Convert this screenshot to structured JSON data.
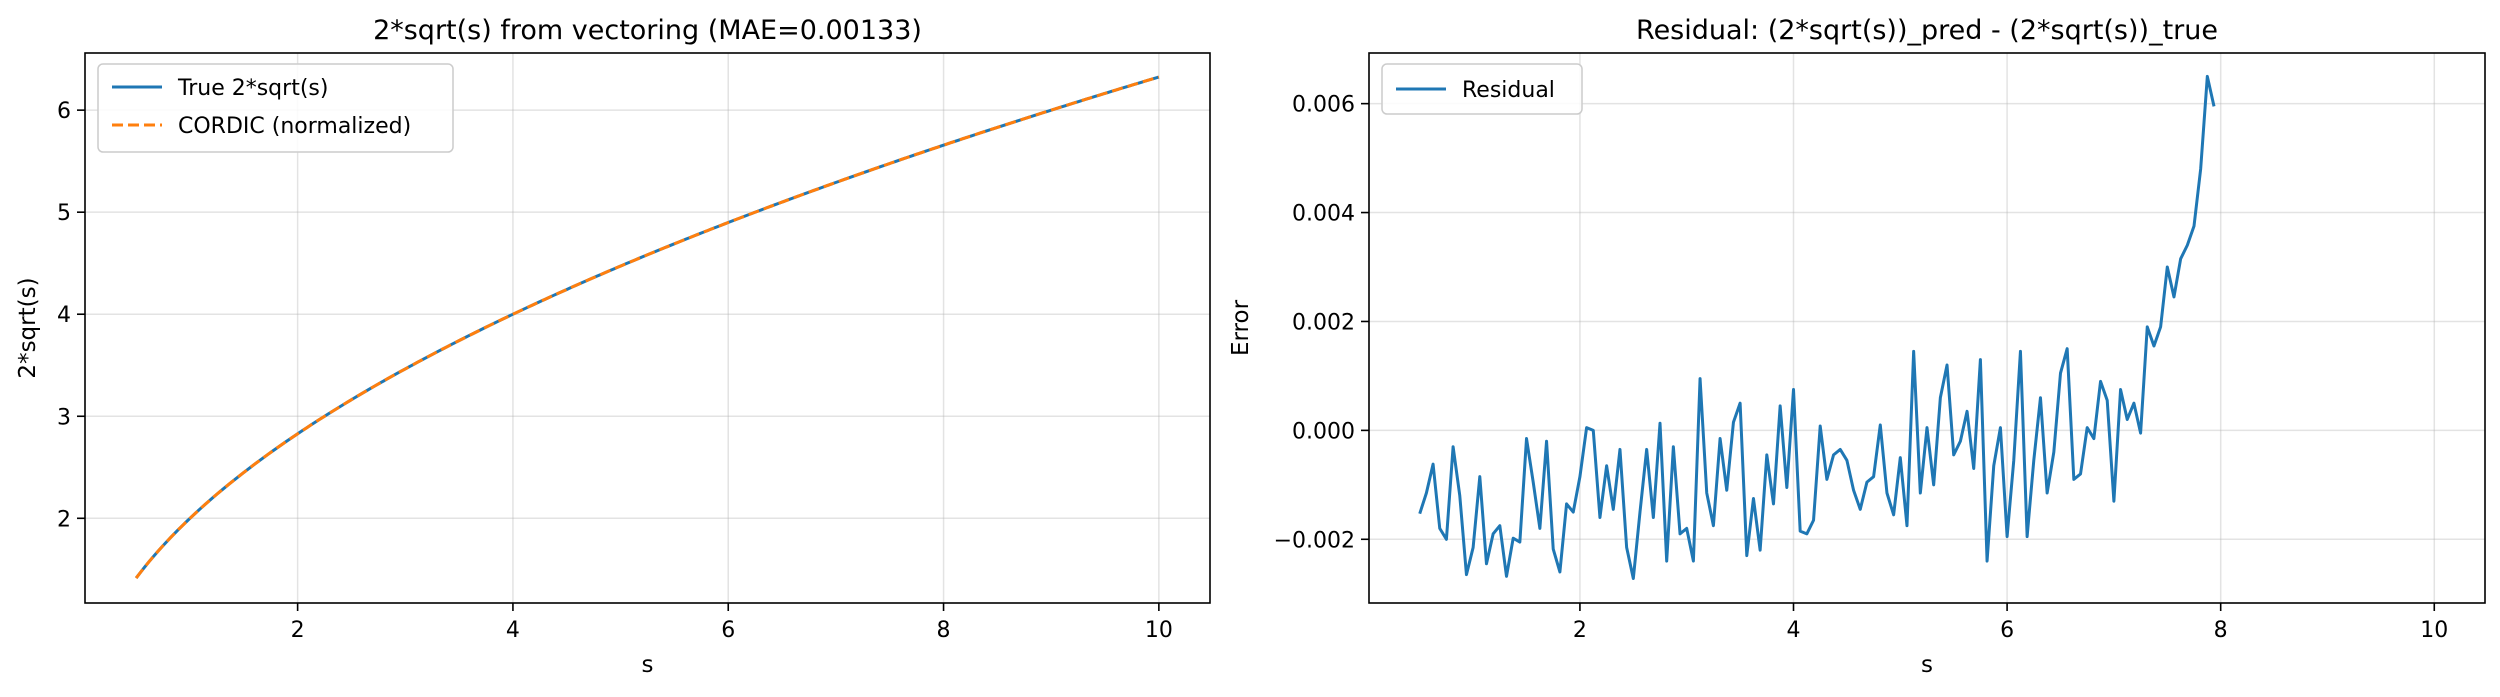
{
  "colors": {
    "blue": "#1f77b4",
    "orange": "#ff7f0e"
  },
  "chart_data": [
    {
      "type": "line",
      "title": "2*sqrt(s) from vectoring  (MAE=0.00133)",
      "xlabel": "s",
      "ylabel": "2*sqrt(s)",
      "xlim": [
        0.025,
        10.475
      ],
      "ylim": [
        1.17,
        6.56
      ],
      "xticks": [
        2,
        4,
        6,
        8,
        10
      ],
      "xtick_labels": [
        "2",
        "4",
        "6",
        "8",
        "10"
      ],
      "yticks": [
        2,
        3,
        4,
        5,
        6
      ],
      "ytick_labels": [
        "2",
        "3",
        "4",
        "5",
        "6"
      ],
      "grid": true,
      "legend_position": "upper-left",
      "x_range": [
        0.5,
        10
      ],
      "series": [
        {
          "name": "True 2*sqrt(s)",
          "function": "2*sqrt(s)",
          "color": "#1f77b4",
          "style": "solid"
        },
        {
          "name": "CORDIC (normalized)",
          "function": "2*sqrt(s)",
          "color": "#ff7f0e",
          "style": "dashed"
        }
      ]
    },
    {
      "type": "line",
      "title": "Residual: (2*sqrt(s))_pred - (2*sqrt(s))_true",
      "xlabel": "s",
      "ylabel": "Error",
      "xlim": [
        0.025,
        10.475
      ],
      "ylim": [
        -0.00317,
        0.00693
      ],
      "xticks": [
        2,
        4,
        6,
        8,
        10
      ],
      "xtick_labels": [
        "2",
        "4",
        "6",
        "8",
        "10"
      ],
      "yticks": [
        -0.002,
        0.0,
        0.002,
        0.004,
        0.006
      ],
      "ytick_labels": [
        "−0.002",
        "0.000",
        "0.002",
        "0.004",
        "0.006"
      ],
      "grid": true,
      "legend_position": "upper-left",
      "series": [
        {
          "name": "Residual",
          "color": "#1f77b4",
          "x_start": 0.5,
          "x_step": 0.0625,
          "values": [
            -0.00153,
            -0.00115,
            -0.00062,
            -0.0018,
            -0.002,
            -0.0003,
            -0.0012,
            -0.00265,
            -0.00215,
            -0.00085,
            -0.00245,
            -0.0019,
            -0.00175,
            -0.00268,
            -0.00198,
            -0.00205,
            -0.00015,
            -0.00095,
            -0.0018,
            -0.0002,
            -0.00218,
            -0.0026,
            -0.00135,
            -0.0015,
            -0.00085,
            5e-05,
            0.0,
            -0.0016,
            -0.00065,
            -0.00145,
            -0.00035,
            -0.00215,
            -0.00272,
            -0.0015,
            -0.00035,
            -0.0016,
            0.00013,
            -0.0024,
            -0.0003,
            -0.0019,
            -0.0018,
            -0.0024,
            0.00095,
            -0.00115,
            -0.00175,
            -0.00015,
            -0.0011,
            0.00015,
            0.0005,
            -0.0023,
            -0.00125,
            -0.0022,
            -0.00045,
            -0.00135,
            0.00045,
            -0.00105,
            0.00075,
            -0.00185,
            -0.0019,
            -0.00165,
            8e-05,
            -0.0009,
            -0.00045,
            -0.00035,
            -0.00055,
            -0.0011,
            -0.00145,
            -0.00095,
            -0.00085,
            0.0001,
            -0.00115,
            -0.00155,
            -0.0005,
            -0.00175,
            0.00145,
            -0.00115,
            5e-05,
            -0.001,
            0.0006,
            0.0012,
            -0.00045,
            -0.0002,
            0.00035,
            -0.0007,
            0.0013,
            -0.0024,
            -0.00065,
            5e-05,
            -0.00195,
            -0.00055,
            0.00145,
            -0.00195,
            -0.00055,
            0.0006,
            -0.00115,
            -0.0004,
            0.00105,
            0.0015,
            -0.0009,
            -0.0008,
            5e-05,
            -0.00015,
            0.0009,
            0.00055,
            -0.0013,
            0.00075,
            0.0002,
            0.0005,
            -5e-05,
            0.0019,
            0.00155,
            0.0019,
            0.003,
            0.00245,
            0.00315,
            0.0034,
            0.00375,
            0.0048,
            0.0065,
            0.00595
          ]
        }
      ]
    }
  ]
}
